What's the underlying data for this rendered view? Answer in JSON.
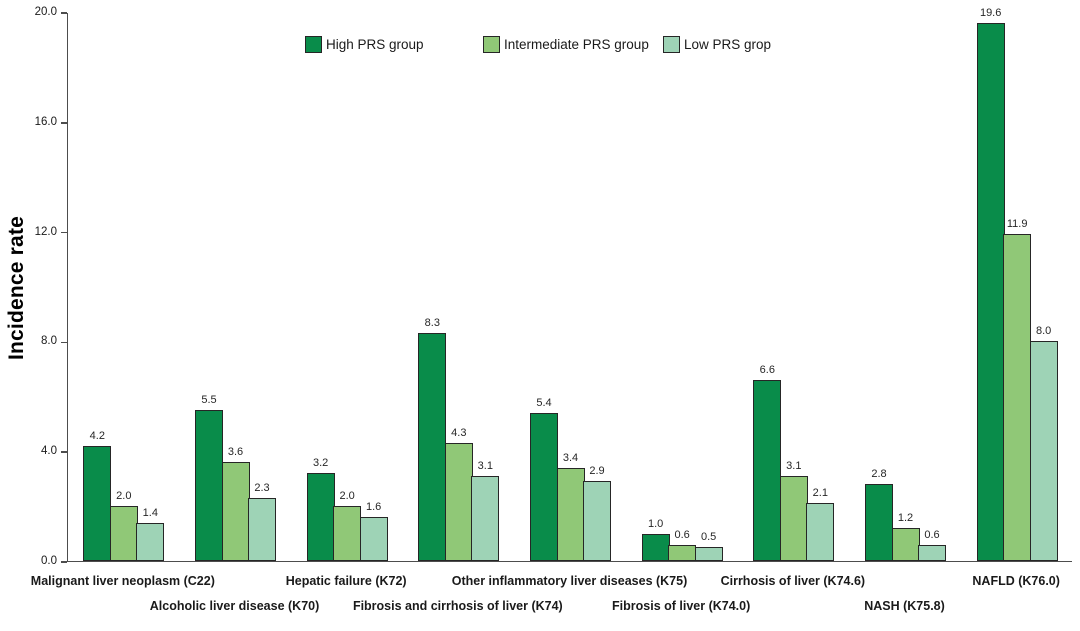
{
  "chart_data": {
    "type": "bar",
    "title": "",
    "xlabel": "",
    "ylabel": "Incidence rate",
    "ylim": [
      0,
      20
    ],
    "yticks": [
      0,
      4,
      8,
      12,
      16,
      20
    ],
    "ytick_labels": [
      "0.0",
      "4.0",
      "8.0",
      "12.0",
      "16.0",
      "20.0"
    ],
    "grid": false,
    "legend_position": "top",
    "value_labels_shown": true,
    "categories": [
      "Malignant liver neoplasm (C22)",
      "Alcoholic liver disease (K70)",
      "Hepatic failure (K72)",
      "Fibrosis and cirrhosis of liver (K74)",
      "Other inflammatory liver diseases (K75)",
      "Fibrosis of liver (K74.0)",
      "Cirrhosis of liver (K74.6)",
      "NASH (K75.8)",
      "NAFLD (K76.0)"
    ],
    "series": [
      {
        "name": "High PRS group",
        "key": "high-prs",
        "color": "#098c4a",
        "values": [
          4.2,
          5.5,
          3.2,
          8.3,
          5.4,
          1.0,
          6.6,
          2.8,
          19.6
        ]
      },
      {
        "name": "Intermediate PRS group",
        "key": "intermediate-prs",
        "color": "#90c877",
        "values": [
          2.0,
          3.6,
          2.0,
          4.3,
          3.4,
          0.6,
          3.1,
          1.2,
          11.9
        ]
      },
      {
        "name": "Low PRS grop",
        "key": "low-prs",
        "color": "#9ed3b6",
        "values": [
          1.4,
          2.3,
          1.6,
          3.1,
          2.9,
          0.5,
          2.1,
          0.6,
          8.0
        ]
      }
    ],
    "colors": {
      "bar_border": "#262626",
      "axis_line": "#4d4d4d",
      "background": "#ffffff"
    }
  }
}
